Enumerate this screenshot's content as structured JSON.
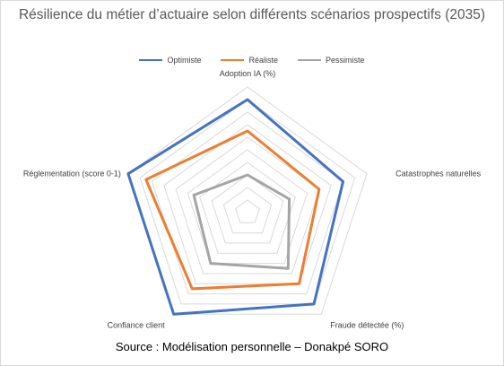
{
  "chart_data": {
    "type": "radar",
    "title": "Résilience du métier d’actuaire selon différents scénarios prospectifs (2035)",
    "axes": [
      "Adoption IA (%)",
      "Catastrophes naturelles",
      "Fraude détectée (%)",
      "Confiance client",
      "Réglementation (score 0-1)"
    ],
    "rmax": 1.0,
    "rings": 10,
    "grid": true,
    "legend_position": "top",
    "series": [
      {
        "name": "Optimiste",
        "color": "#4472C4",
        "values": [
          0.9,
          0.8,
          0.9,
          1.0,
          1.0
        ]
      },
      {
        "name": "Réaliste",
        "color": "#ED7D31",
        "values": [
          0.65,
          0.6,
          0.7,
          0.75,
          0.85
        ]
      },
      {
        "name": "Pessimiste",
        "color": "#A5A5A5",
        "values": [
          0.3,
          0.35,
          0.55,
          0.5,
          0.45
        ]
      }
    ]
  },
  "source": "Source : Modélisation personnelle – Donakpé SORO"
}
